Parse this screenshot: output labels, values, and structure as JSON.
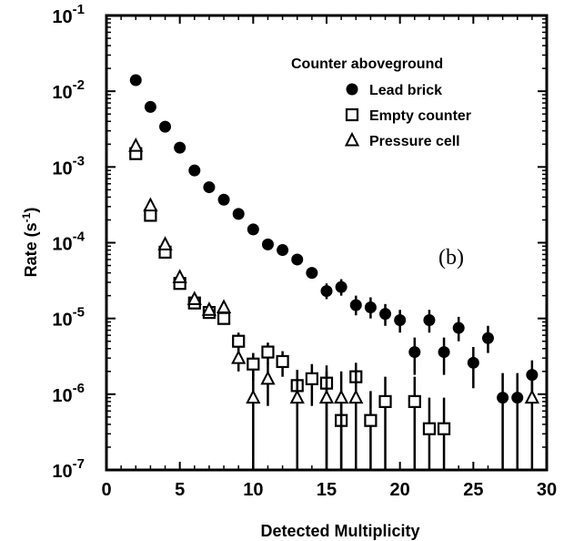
{
  "chart_data": {
    "type": "scatter",
    "title": "",
    "xlabel": "Detected Multiplicity",
    "ylabel": "Rate (s",
    "ylabel_sup": "-1",
    "ylabel_close": ")",
    "panel_label": "(b)",
    "xlim": [
      0,
      30
    ],
    "ylim": [
      1e-07,
      0.1
    ],
    "yscale": "log",
    "x_ticks": [
      0,
      5,
      10,
      15,
      20,
      25,
      30
    ],
    "x_tick_labels": [
      "0",
      "5",
      "10",
      "15",
      "20",
      "25",
      "30"
    ],
    "y_ticks": [
      {
        "value": 1e-07,
        "base": "10",
        "exp": "-7"
      },
      {
        "value": 1e-06,
        "base": "10",
        "exp": "-6"
      },
      {
        "value": 1e-05,
        "base": "10",
        "exp": "-5"
      },
      {
        "value": 0.0001,
        "base": "10",
        "exp": "-4"
      },
      {
        "value": 0.001,
        "base": "10",
        "exp": "-3"
      },
      {
        "value": 0.01,
        "base": "10",
        "exp": "-2"
      },
      {
        "value": 0.1,
        "base": "10",
        "exp": "-1"
      }
    ],
    "grid": false,
    "legend": {
      "title": "Counter aboveground",
      "placement": "top-right"
    },
    "series": [
      {
        "name": "Lead brick",
        "marker": "filled-circle",
        "points": [
          {
            "x": 2,
            "y": 0.014
          },
          {
            "x": 3,
            "y": 0.0062
          },
          {
            "x": 4,
            "y": 0.0034
          },
          {
            "x": 5,
            "y": 0.0018
          },
          {
            "x": 6,
            "y": 0.0009
          },
          {
            "x": 7,
            "y": 0.00054
          },
          {
            "x": 8,
            "y": 0.00037
          },
          {
            "x": 9,
            "y": 0.00024
          },
          {
            "x": 10,
            "y": 0.00015
          },
          {
            "x": 11,
            "y": 9.5e-05
          },
          {
            "x": 12,
            "y": 8e-05
          },
          {
            "x": 13,
            "y": 6e-05
          },
          {
            "x": 14,
            "y": 4e-05
          },
          {
            "x": 15,
            "y": 2.3e-05,
            "ylo": 1.8e-05,
            "yhi": 2.9e-05
          },
          {
            "x": 16,
            "y": 2.6e-05,
            "ylo": 2e-05,
            "yhi": 3.3e-05
          },
          {
            "x": 17,
            "y": 1.5e-05,
            "ylo": 1.1e-05,
            "yhi": 2e-05
          },
          {
            "x": 18,
            "y": 1.4e-05,
            "ylo": 1e-05,
            "yhi": 1.9e-05
          },
          {
            "x": 19,
            "y": 1.15e-05,
            "ylo": 8e-06,
            "yhi": 1.55e-05
          },
          {
            "x": 20,
            "y": 9.5e-06,
            "ylo": 6.5e-06,
            "yhi": 1.3e-05
          },
          {
            "x": 21,
            "y": 3.6e-06,
            "ylo": 1.8e-06,
            "yhi": 5.6e-06
          },
          {
            "x": 22,
            "y": 9.5e-06,
            "ylo": 6.5e-06,
            "yhi": 1.3e-05
          },
          {
            "x": 23,
            "y": 3.6e-06,
            "ylo": 1.8e-06,
            "yhi": 5.6e-06
          },
          {
            "x": 24,
            "y": 7.5e-06,
            "ylo": 5e-06,
            "yhi": 1.05e-05
          },
          {
            "x": 25,
            "y": 2.6e-06,
            "ylo": 1.2e-06,
            "yhi": 4.2e-06
          },
          {
            "x": 26,
            "y": 5.5e-06,
            "ylo": 3.5e-06,
            "yhi": 8e-06
          },
          {
            "x": 27,
            "y": 9e-07,
            "ylo": 1e-07,
            "yhi": 1.9e-06
          },
          {
            "x": 28,
            "y": 9e-07,
            "ylo": 1e-07,
            "yhi": 1.9e-06
          },
          {
            "x": 29,
            "y": 1.8e-06,
            "ylo": 8e-07,
            "yhi": 2.8e-06
          }
        ]
      },
      {
        "name": "Empty counter",
        "marker": "open-square",
        "points": [
          {
            "x": 2,
            "y": 0.0015
          },
          {
            "x": 3,
            "y": 0.00023
          },
          {
            "x": 4,
            "y": 7.5e-05
          },
          {
            "x": 5,
            "y": 2.9e-05
          },
          {
            "x": 6,
            "y": 1.6e-05
          },
          {
            "x": 7,
            "y": 1.2e-05
          },
          {
            "x": 8,
            "y": 1e-05
          },
          {
            "x": 9,
            "y": 5e-06,
            "ylo": 3.6e-06,
            "yhi": 6.5e-06
          },
          {
            "x": 10,
            "y": 2.5e-06,
            "ylo": 1.5e-06,
            "yhi": 3.5e-06
          },
          {
            "x": 11,
            "y": 3.6e-06,
            "ylo": 2.5e-06,
            "yhi": 4.8e-06
          },
          {
            "x": 12,
            "y": 2.7e-06,
            "ylo": 1.7e-06,
            "yhi": 3.7e-06
          },
          {
            "x": 13,
            "y": 1.3e-06,
            "ylo": 5e-07,
            "yhi": 2.1e-06
          },
          {
            "x": 14,
            "y": 1.6e-06,
            "ylo": 7e-07,
            "yhi": 2.5e-06
          },
          {
            "x": 15,
            "y": 1.4e-06,
            "ylo": 1e-07,
            "yhi": 2.4e-06
          },
          {
            "x": 16,
            "y": 4.5e-07,
            "ylo": 1e-07,
            "yhi": 1.1e-06
          },
          {
            "x": 17,
            "y": 1.7e-06,
            "ylo": 8e-07,
            "yhi": 2.6e-06
          },
          {
            "x": 18,
            "y": 4.5e-07,
            "ylo": 1e-07,
            "yhi": 1.1e-06
          },
          {
            "x": 19,
            "y": 8e-07,
            "ylo": 1e-07,
            "yhi": 1.7e-06
          },
          {
            "x": 21,
            "y": 8e-07,
            "ylo": 1e-07,
            "yhi": 1.7e-06
          },
          {
            "x": 22,
            "y": 3.5e-07,
            "ylo": 1e-07,
            "yhi": 9e-07
          },
          {
            "x": 23,
            "y": 3.5e-07,
            "ylo": 1e-07,
            "yhi": 9e-07
          }
        ]
      },
      {
        "name": "Pressure cell",
        "marker": "open-triangle",
        "points": [
          {
            "x": 2,
            "y": 0.0019
          },
          {
            "x": 3,
            "y": 0.00031
          },
          {
            "x": 4,
            "y": 9.5e-05
          },
          {
            "x": 5,
            "y": 3.5e-05
          },
          {
            "x": 6,
            "y": 1.8e-05
          },
          {
            "x": 7,
            "y": 1.3e-05
          },
          {
            "x": 8,
            "y": 1.4e-05
          },
          {
            "x": 9,
            "y": 3e-06,
            "ylo": 2e-06,
            "yhi": 4.3e-06
          },
          {
            "x": 10,
            "y": 9e-07,
            "ylo": 1e-07,
            "yhi": 2e-06
          },
          {
            "x": 11,
            "y": 1.6e-06,
            "ylo": 7e-07,
            "yhi": 2.6e-06
          },
          {
            "x": 13,
            "y": 9e-07,
            "ylo": 1e-07,
            "yhi": 2e-06
          },
          {
            "x": 15,
            "y": 9e-07,
            "ylo": 1e-07,
            "yhi": 2e-06
          },
          {
            "x": 16,
            "y": 9e-07,
            "ylo": 1e-07,
            "yhi": 2e-06
          },
          {
            "x": 17,
            "y": 9e-07,
            "ylo": 1e-07,
            "yhi": 2e-06
          },
          {
            "x": 29,
            "y": 9e-07,
            "ylo": 1e-07,
            "yhi": 2e-06
          }
        ]
      }
    ]
  }
}
